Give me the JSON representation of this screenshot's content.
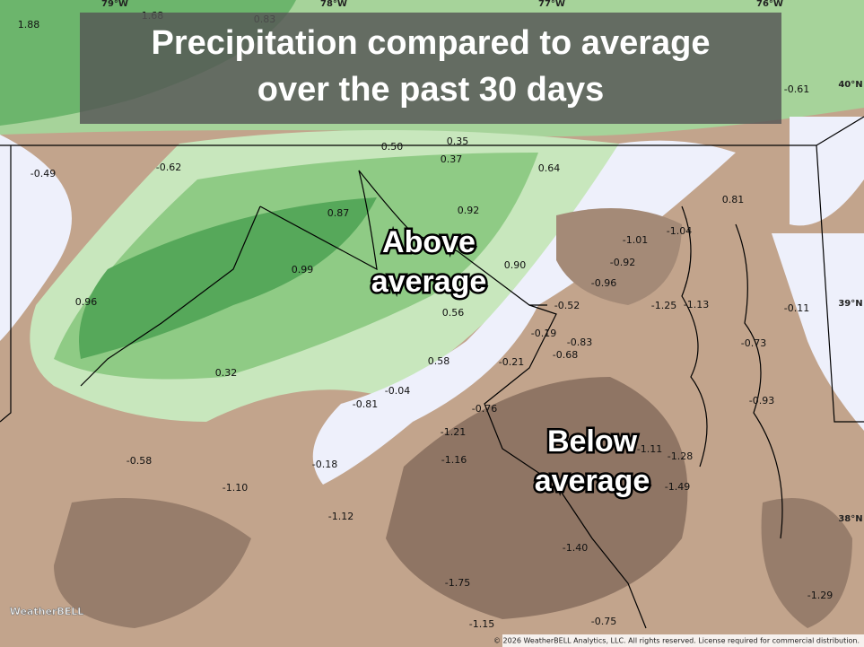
{
  "header": {
    "title_lines": [
      "Precipitation compared to average",
      "over the past 30 days"
    ]
  },
  "annotations": {
    "above": [
      "Above",
      "average"
    ],
    "below": [
      "Below",
      "average"
    ]
  },
  "grid_labels": [
    "79°W",
    "78°W",
    "77°W",
    "76°W",
    "40°N",
    "39°N",
    "38°N"
  ],
  "values": [
    "1.88",
    "1.68",
    "0.83",
    "-0.61",
    "0.50",
    "0.35",
    "0.37",
    "0.64",
    "-0.49",
    "-0.62",
    "0.87",
    "0.92",
    "0.81",
    "-1.01",
    "-1.04",
    "-0.92",
    "0.90",
    "0.99",
    "0.96",
    "-0.96",
    "-0.52",
    "-1.25",
    "-1.13",
    "-0.11",
    "0.56",
    "-0.19",
    "-0.83",
    "-0.73",
    "-0.68",
    "0.58",
    "-0.21",
    "0.32",
    "-0.04",
    "-0.81",
    "-0.93",
    "-0.76",
    "-1.21",
    "-1.11",
    "-1.28",
    "-1.16",
    "-0.58",
    "-0.18",
    "-1.49",
    "-1.10",
    "-1.12",
    "-1.40",
    "-1.75",
    "-1.29",
    "-1.15",
    "-0.75"
  ],
  "logo": "WeatherBELL",
  "copyright": "© 2026 WeatherBELL Analytics, LLC. All rights reserved. License required for commercial distribution."
}
